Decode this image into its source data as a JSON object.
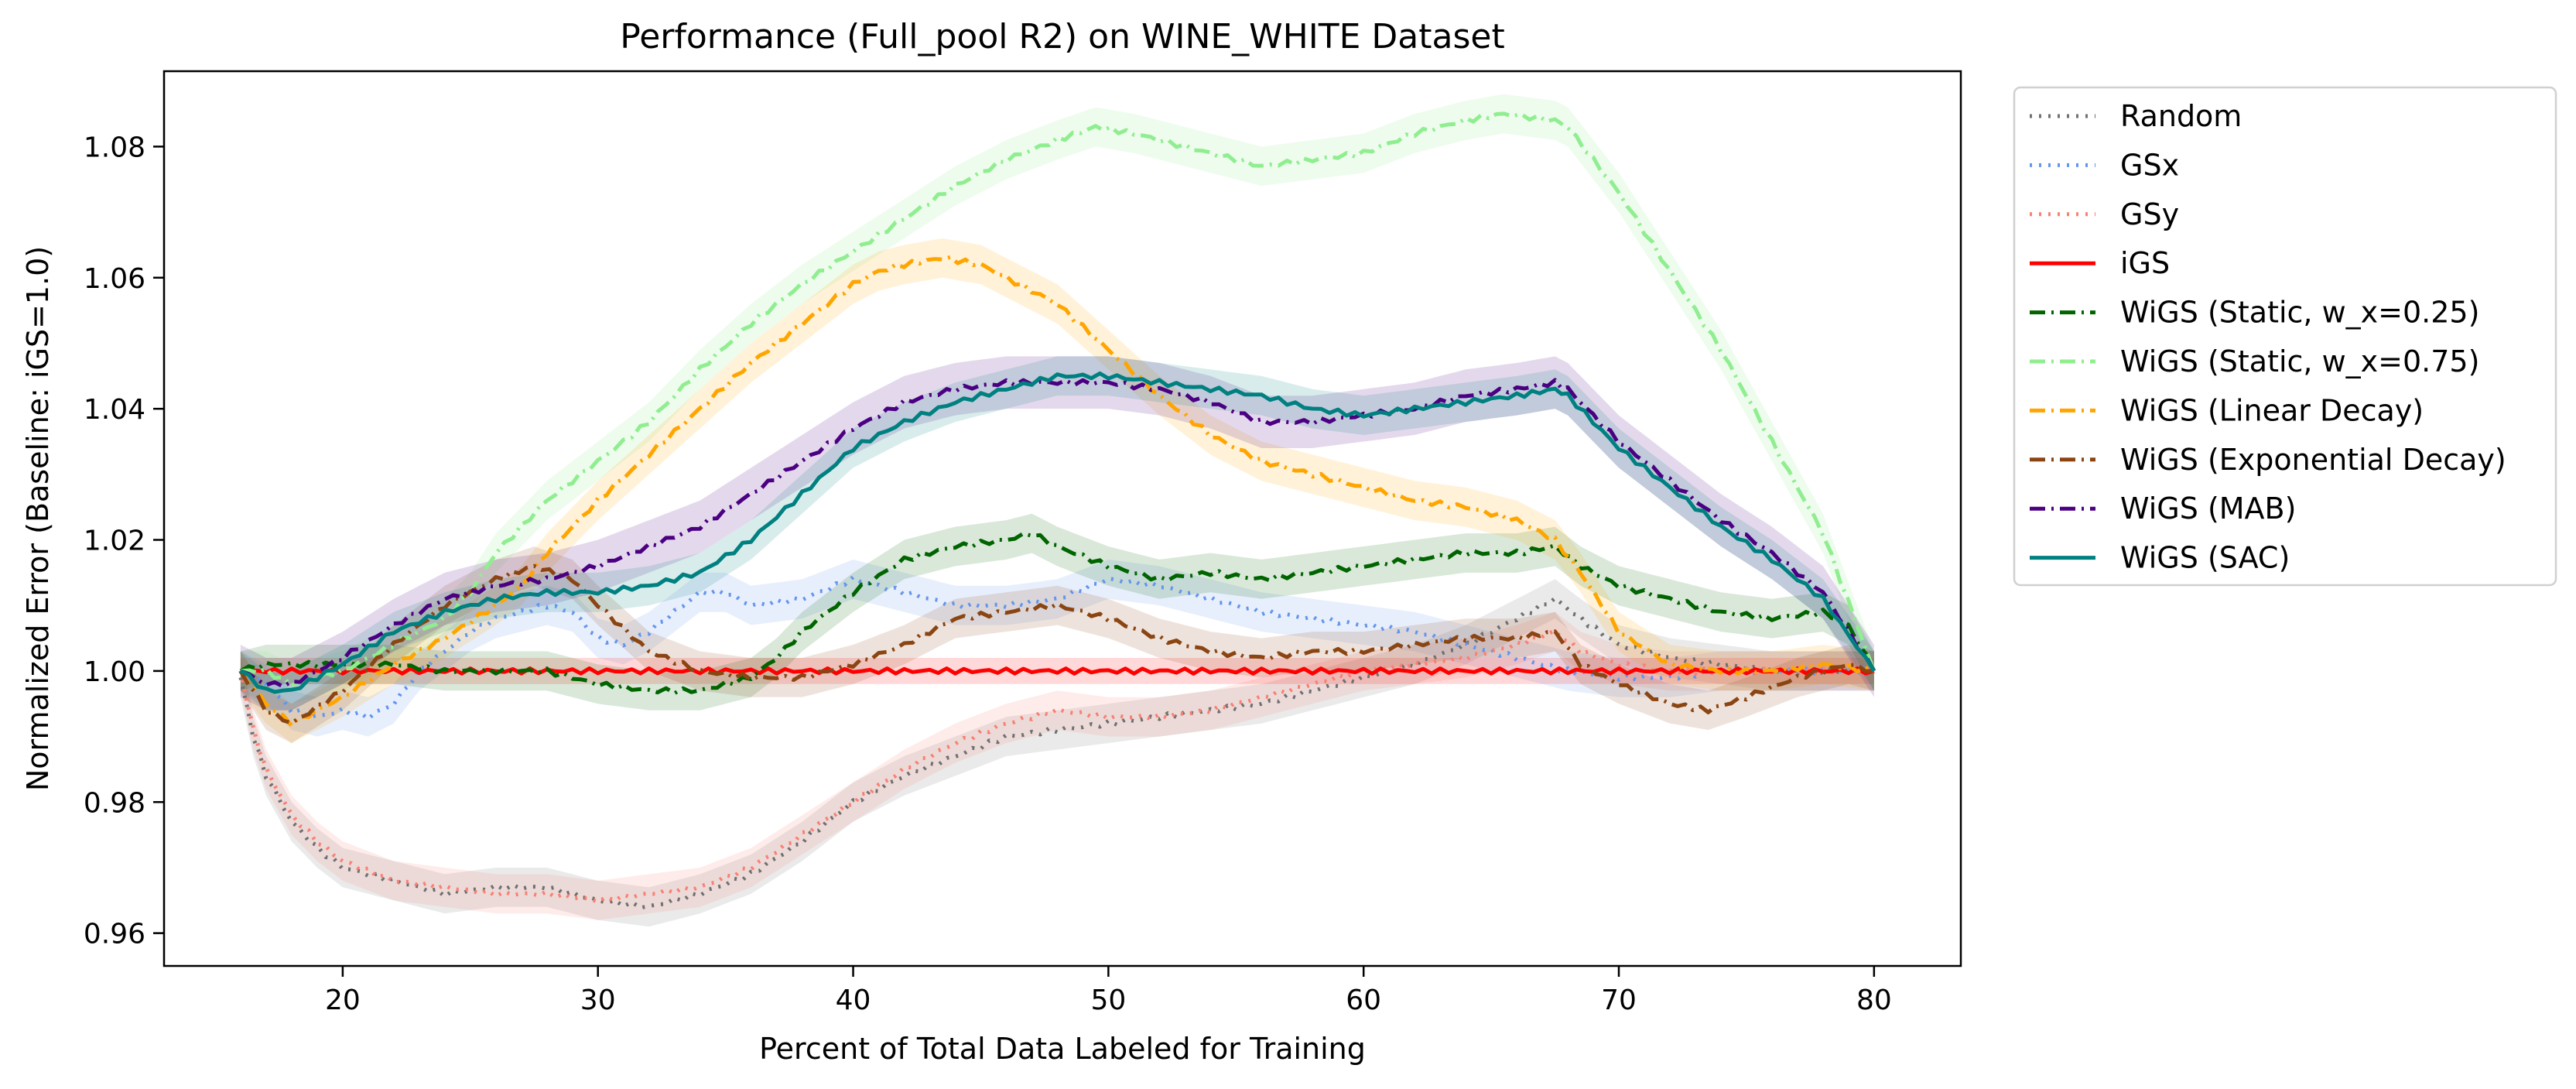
{
  "chart_data": {
    "type": "line",
    "title": "Performance (Full_pool R2) on WINE_WHITE Dataset",
    "xlabel": "Percent of Total Data Labeled for Training",
    "ylabel": "Normalized Error (Baseline: iGS=1.0)",
    "xlim": [
      13,
      83.4
    ],
    "ylim": [
      0.955,
      1.0915
    ],
    "xticks": [
      20,
      30,
      40,
      50,
      60,
      70,
      80
    ],
    "yticks": [
      0.96,
      0.98,
      1.0,
      1.02,
      1.04,
      1.06,
      1.08
    ],
    "xtick_labels": [
      "20",
      "30",
      "40",
      "50",
      "60",
      "70",
      "80"
    ],
    "ytick_labels": [
      "0.96",
      "0.98",
      "1.00",
      "1.02",
      "1.04",
      "1.06",
      "1.08"
    ],
    "grid": false,
    "legend_position": "outside-right",
    "series": [
      {
        "name": "Random",
        "color": "#707070",
        "dash": "dotted",
        "band": 0.003,
        "x": [
          16,
          16.5,
          17,
          18,
          19,
          20,
          22,
          24,
          26,
          28,
          30,
          32,
          34,
          36,
          38,
          40,
          42,
          44,
          46,
          48,
          50,
          52,
          54,
          56,
          58,
          60,
          62,
          64,
          66,
          67.5,
          68.5,
          70,
          72,
          74,
          76,
          78,
          80
        ],
        "y": [
          0.999,
          0.99,
          0.984,
          0.977,
          0.973,
          0.97,
          0.968,
          0.966,
          0.967,
          0.967,
          0.965,
          0.964,
          0.966,
          0.969,
          0.974,
          0.98,
          0.984,
          0.987,
          0.99,
          0.991,
          0.992,
          0.993,
          0.994,
          0.995,
          0.997,
          0.999,
          1.001,
          1.004,
          1.008,
          1.011,
          1.008,
          1.004,
          1.002,
          1.001,
          1.0,
          1.0,
          1.0
        ]
      },
      {
        "name": "GSx",
        "color": "#6495ed",
        "dash": "dotted",
        "band": 0.003,
        "x": [
          16,
          17,
          18,
          19,
          20,
          21,
          22,
          23,
          24,
          25,
          26,
          27,
          28,
          29,
          30,
          31,
          32,
          33,
          34,
          35,
          36,
          38,
          40,
          42,
          44,
          46,
          48,
          50,
          52,
          54,
          56,
          58,
          60,
          62,
          64,
          66,
          68,
          70,
          72,
          74,
          76,
          78,
          80
        ],
        "y": [
          1.0,
          0.998,
          0.994,
          0.993,
          0.994,
          0.993,
          0.995,
          1.0,
          1.003,
          1.006,
          1.008,
          1.009,
          1.01,
          1.009,
          1.005,
          1.004,
          1.006,
          1.009,
          1.012,
          1.012,
          1.01,
          1.011,
          1.014,
          1.012,
          1.01,
          1.01,
          1.011,
          1.014,
          1.013,
          1.011,
          1.009,
          1.008,
          1.007,
          1.006,
          1.004,
          1.002,
          1.0,
          0.999,
          0.999,
          1.0,
          1.0,
          1.0,
          1.0
        ]
      },
      {
        "name": "GSy",
        "color": "#fa8072",
        "dash": "dotted",
        "band": 0.003,
        "x": [
          16,
          16.5,
          17,
          18,
          19,
          20,
          22,
          24,
          26,
          28,
          30,
          32,
          34,
          36,
          38,
          40,
          42,
          44,
          46,
          48,
          50,
          52,
          54,
          56,
          58,
          60,
          62,
          64,
          66,
          67.5,
          68.5,
          70,
          72,
          74,
          76,
          78,
          80
        ],
        "y": [
          1.0,
          0.991,
          0.985,
          0.978,
          0.974,
          0.971,
          0.968,
          0.967,
          0.966,
          0.966,
          0.965,
          0.966,
          0.967,
          0.97,
          0.975,
          0.98,
          0.985,
          0.989,
          0.992,
          0.994,
          0.993,
          0.993,
          0.994,
          0.996,
          0.998,
          1.0,
          1.001,
          1.002,
          1.004,
          1.006,
          1.003,
          1.001,
          1.0,
          1.0,
          1.0,
          1.0,
          1.0
        ]
      },
      {
        "name": "iGS",
        "color": "#ff0000",
        "dash": "solid",
        "band": 0.002,
        "x": [
          16,
          80
        ],
        "y": [
          1.0,
          1.0
        ]
      },
      {
        "name": "WiGS (Static, w_x=0.25)",
        "color": "#006400",
        "dash": "dashdot",
        "band": 0.003,
        "x": [
          16,
          17,
          18,
          20,
          22,
          24,
          26,
          28,
          30,
          32,
          34,
          36,
          37,
          38,
          40,
          42,
          44,
          46,
          47,
          48,
          50,
          52,
          54,
          56,
          58,
          60,
          62,
          64,
          66,
          67.5,
          68.5,
          70,
          72,
          74,
          76,
          78,
          79,
          80
        ],
        "y": [
          1.0,
          1.001,
          1.001,
          1.001,
          1.001,
          1.0,
          1.0,
          1.0,
          0.998,
          0.997,
          0.997,
          0.999,
          1.002,
          1.006,
          1.012,
          1.017,
          1.019,
          1.02,
          1.021,
          1.019,
          1.016,
          1.014,
          1.015,
          1.014,
          1.015,
          1.016,
          1.017,
          1.018,
          1.018,
          1.019,
          1.016,
          1.013,
          1.011,
          1.009,
          1.008,
          1.009,
          1.007,
          1.0
        ]
      },
      {
        "name": "WiGS (Static, w_x=0.75)",
        "color": "#90ee90",
        "dash": "dashdot",
        "band": 0.003,
        "x": [
          16,
          17,
          18,
          20,
          22,
          24,
          25,
          26,
          28,
          30,
          32,
          34,
          36,
          38,
          40,
          42,
          44,
          46,
          48,
          49.5,
          51,
          53,
          55,
          56,
          58,
          60,
          62,
          64,
          65.5,
          67.5,
          68,
          70,
          72,
          74,
          76,
          78,
          80
        ],
        "y": [
          1.0,
          1.0,
          0.998,
          1.0,
          1.004,
          1.008,
          1.012,
          1.018,
          1.026,
          1.032,
          1.038,
          1.046,
          1.053,
          1.059,
          1.064,
          1.069,
          1.074,
          1.078,
          1.081,
          1.083,
          1.082,
          1.08,
          1.078,
          1.077,
          1.078,
          1.079,
          1.082,
          1.084,
          1.085,
          1.084,
          1.083,
          1.073,
          1.061,
          1.049,
          1.035,
          1.021,
          1.0
        ]
      },
      {
        "name": "WiGS (Linear Decay)",
        "color": "#ffa500",
        "dash": "dashdot",
        "band": 0.003,
        "x": [
          16,
          17,
          18,
          19,
          20,
          22,
          24,
          26,
          27,
          28,
          30,
          32,
          34,
          36,
          38,
          40,
          41,
          42,
          43.5,
          45,
          46,
          48,
          50,
          52,
          54,
          56,
          58,
          60,
          62,
          64,
          66,
          67.5,
          68.5,
          70,
          72,
          74,
          76,
          78,
          80
        ],
        "y": [
          1.0,
          0.995,
          0.992,
          0.994,
          0.996,
          1.001,
          1.005,
          1.01,
          1.013,
          1.018,
          1.026,
          1.033,
          1.04,
          1.047,
          1.053,
          1.059,
          1.061,
          1.062,
          1.063,
          1.062,
          1.06,
          1.056,
          1.049,
          1.042,
          1.036,
          1.032,
          1.03,
          1.028,
          1.026,
          1.025,
          1.023,
          1.02,
          1.015,
          1.006,
          1.001,
          1.0,
          1.0,
          1.001,
          1.0
        ]
      },
      {
        "name": "WiGS (Exponential Decay)",
        "color": "#8b4513",
        "dash": "dashdot",
        "band": 0.003,
        "x": [
          16,
          17,
          18,
          20,
          22,
          24,
          26,
          27.5,
          29,
          30,
          32,
          34,
          36,
          38,
          40,
          42,
          44,
          46,
          48,
          50,
          52,
          54,
          56,
          58,
          60,
          62,
          64,
          66,
          67.5,
          68.5,
          70,
          72,
          73.5,
          75,
          77,
          79,
          80
        ],
        "y": [
          1.0,
          0.994,
          0.992,
          0.997,
          1.004,
          1.01,
          1.014,
          1.016,
          1.014,
          1.01,
          1.003,
          1.0,
          0.999,
          0.999,
          1.001,
          1.004,
          1.008,
          1.009,
          1.01,
          1.008,
          1.005,
          1.003,
          1.002,
          1.003,
          1.003,
          1.004,
          1.005,
          1.005,
          1.006,
          1.001,
          0.998,
          0.995,
          0.994,
          0.996,
          0.999,
          1.001,
          1.0
        ]
      },
      {
        "name": "WiGS (MAB)",
        "color": "#4b0082",
        "dash": "dashdot",
        "band": 0.004,
        "x": [
          16,
          17,
          18,
          20,
          22,
          24,
          26,
          28,
          30,
          32,
          34,
          36,
          38,
          40,
          42,
          44,
          46,
          48,
          50,
          52,
          54,
          56,
          58,
          60,
          62,
          64,
          66,
          67.5,
          68,
          70,
          72,
          74,
          76,
          78,
          80
        ],
        "y": [
          1.0,
          0.998,
          0.998,
          1.002,
          1.007,
          1.011,
          1.013,
          1.014,
          1.016,
          1.019,
          1.022,
          1.027,
          1.032,
          1.037,
          1.041,
          1.043,
          1.044,
          1.044,
          1.044,
          1.043,
          1.041,
          1.038,
          1.038,
          1.039,
          1.04,
          1.042,
          1.043,
          1.044,
          1.043,
          1.035,
          1.029,
          1.023,
          1.018,
          1.012,
          1.0
        ]
      },
      {
        "name": "WiGS (SAC)",
        "color": "#008080",
        "dash": "solid",
        "band": 0.003,
        "x": [
          16,
          17,
          18,
          20,
          22,
          24,
          26,
          28,
          30,
          32,
          34,
          36,
          38,
          40,
          42,
          44,
          46,
          48,
          50,
          52,
          54,
          56,
          58,
          60,
          62,
          64,
          66,
          67.5,
          68,
          70,
          72,
          74,
          76,
          78,
          80
        ],
        "y": [
          1.0,
          0.997,
          0.997,
          1.001,
          1.006,
          1.009,
          1.011,
          1.012,
          1.012,
          1.013,
          1.015,
          1.02,
          1.027,
          1.034,
          1.038,
          1.041,
          1.043,
          1.045,
          1.045,
          1.044,
          1.043,
          1.042,
          1.04,
          1.039,
          1.04,
          1.041,
          1.042,
          1.043,
          1.042,
          1.034,
          1.028,
          1.022,
          1.017,
          1.011,
          1.0
        ]
      }
    ]
  }
}
